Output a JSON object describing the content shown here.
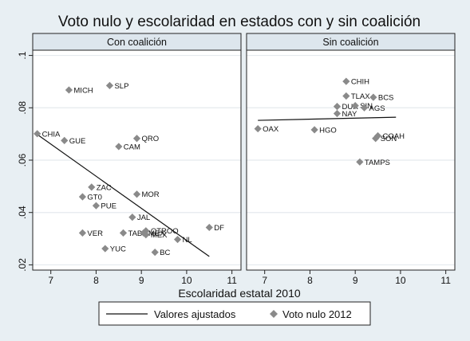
{
  "chart_data": {
    "type": "scatter",
    "title": "Voto nulo y escolaridad en estados con y sin coalición",
    "xlabel": "Escolaridad estatal 2010",
    "ylabel": "",
    "xlim": [
      6.6,
      11.2
    ],
    "ylim": [
      0.018,
      0.102
    ],
    "x_ticks": [
      7,
      8,
      9,
      10,
      11
    ],
    "y_ticks": [
      0.02,
      0.04,
      0.06,
      0.08,
      0.1
    ],
    "y_tick_labels": [
      ".02",
      ".04",
      ".06",
      ".08",
      ".1"
    ],
    "grid": true,
    "legend_placement": "bottom",
    "legend": [
      {
        "label": "Valores ajustados",
        "kind": "line"
      },
      {
        "label": "Voto nulo 2012",
        "kind": "marker"
      }
    ],
    "panels": [
      {
        "strip": "Con coalición",
        "fit_line": [
          [
            6.7,
            0.0698
          ],
          [
            10.5,
            0.0232
          ]
        ],
        "points": [
          {
            "label": "SLP",
            "x": 8.3,
            "y": 0.0885
          },
          {
            "label": "MICH",
            "x": 7.4,
            "y": 0.0868
          },
          {
            "label": "QRO",
            "x": 8.9,
            "y": 0.0683
          },
          {
            "label": "CHIA",
            "x": 6.7,
            "y": 0.0701
          },
          {
            "label": "GUE",
            "x": 7.3,
            "y": 0.0675
          },
          {
            "label": "CAM",
            "x": 8.5,
            "y": 0.0652
          },
          {
            "label": "ZAC",
            "x": 7.9,
            "y": 0.0497
          },
          {
            "label": "GT0",
            "x": 7.7,
            "y": 0.046
          },
          {
            "label": "MOR",
            "x": 8.9,
            "y": 0.047
          },
          {
            "label": "PUE",
            "x": 8.0,
            "y": 0.0426
          },
          {
            "label": "JAL",
            "x": 8.8,
            "y": 0.0382
          },
          {
            "label": "DF",
            "x": 10.5,
            "y": 0.0343
          },
          {
            "label": "VER",
            "x": 7.7,
            "y": 0.0322
          },
          {
            "label": "TAB",
            "x": 8.6,
            "y": 0.0322
          },
          {
            "label": "OTROO",
            "x": 9.1,
            "y": 0.033
          },
          {
            "label": "MEX",
            "x": 9.1,
            "y": 0.0315
          },
          {
            "label": "MEX",
            "x": 9.05,
            "y": 0.0322
          },
          {
            "label": "NL",
            "x": 9.8,
            "y": 0.0297
          },
          {
            "label": "YUC",
            "x": 8.2,
            "y": 0.0262
          },
          {
            "label": "BC",
            "x": 9.3,
            "y": 0.0248
          }
        ]
      },
      {
        "strip": "Sin coalición",
        "fit_line": [
          [
            6.85,
            0.0752
          ],
          [
            9.9,
            0.0764
          ]
        ],
        "points": [
          {
            "label": "CHIH",
            "x": 8.8,
            "y": 0.0901
          },
          {
            "label": "TLAX",
            "x": 8.8,
            "y": 0.0845
          },
          {
            "label": "BCS",
            "x": 9.4,
            "y": 0.084
          },
          {
            "label": "DUR",
            "x": 8.6,
            "y": 0.0805
          },
          {
            "label": "SIN",
            "x": 9.0,
            "y": 0.0808
          },
          {
            "label": "AGS",
            "x": 9.2,
            "y": 0.08
          },
          {
            "label": "NAY",
            "x": 8.6,
            "y": 0.0778
          },
          {
            "label": "OAX",
            "x": 6.85,
            "y": 0.072
          },
          {
            "label": "HGO",
            "x": 8.1,
            "y": 0.0716
          },
          {
            "label": "COAH",
            "x": 9.5,
            "y": 0.0693
          },
          {
            "label": "SON",
            "x": 9.45,
            "y": 0.0683
          },
          {
            "label": "TAMPS",
            "x": 9.1,
            "y": 0.0593
          }
        ]
      }
    ]
  }
}
